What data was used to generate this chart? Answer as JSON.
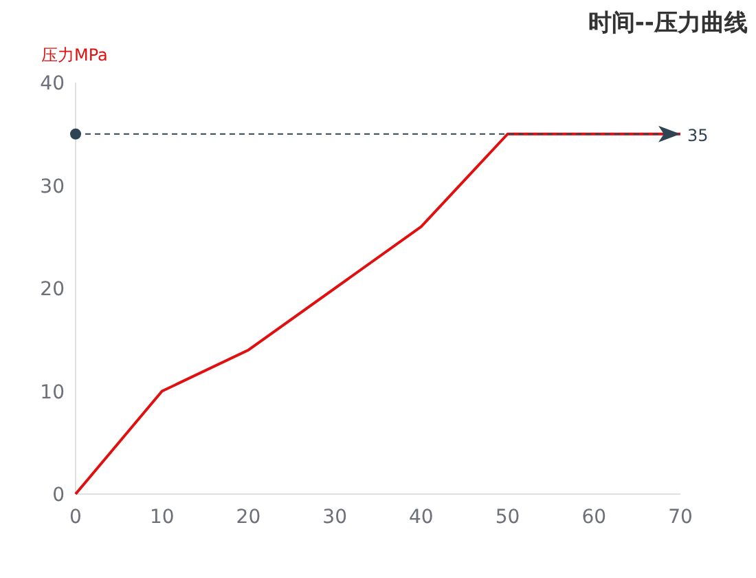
{
  "chart_data": {
    "type": "line",
    "title": "时间--压力曲线",
    "ylabel": "压力MPa",
    "x": [
      0,
      10,
      20,
      40,
      50,
      70
    ],
    "series": [
      {
        "color": "#e01010",
        "values": [
          0,
          10,
          14,
          26,
          35,
          35
        ]
      }
    ],
    "xlim": [
      0,
      70
    ],
    "xticks": [
      0,
      10,
      20,
      30,
      40,
      50,
      60,
      70
    ],
    "ylim": [
      0,
      40
    ],
    "yticks": [
      0,
      10,
      20,
      30,
      40
    ],
    "ref_lines": [
      {
        "axis": "y",
        "value": 35,
        "label": "35",
        "color": "#2f4554",
        "line_style": "dashed"
      }
    ],
    "grid": false,
    "marker": "none"
  }
}
